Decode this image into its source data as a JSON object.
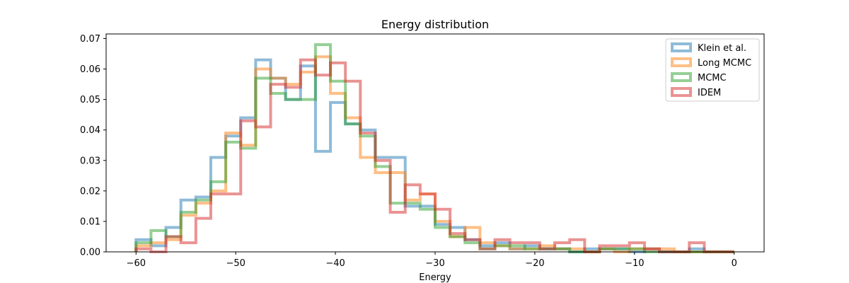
{
  "chart_data": {
    "type": "histogram",
    "title": "Energy distribution",
    "xlabel": "Energy",
    "ylabel": "",
    "xlim": [
      -63,
      3
    ],
    "ylim": [
      0,
      0.0715
    ],
    "grid": false,
    "legend_position": "top-right",
    "x_ticks": [
      -60,
      -50,
      -40,
      -30,
      -20,
      -10,
      0
    ],
    "x_tick_labels": [
      "−60",
      "−50",
      "−40",
      "−30",
      "−20",
      "−10",
      "0"
    ],
    "y_ticks": [
      0.0,
      0.01,
      0.02,
      0.03,
      0.04,
      0.05,
      0.06,
      0.07
    ],
    "y_tick_labels": [
      "0.00",
      "0.01",
      "0.02",
      "0.03",
      "0.04",
      "0.05",
      "0.06",
      "0.07"
    ],
    "bin_edges": [
      -60,
      -58.5,
      -57,
      -55.5,
      -54,
      -52.5,
      -51,
      -49.5,
      -48,
      -46.5,
      -45,
      -43.5,
      -42,
      -40.5,
      -39,
      -37.5,
      -36,
      -34.5,
      -33,
      -31.5,
      -30,
      -28.5,
      -27,
      -25.5,
      -24,
      -22.5,
      -21,
      -19.5,
      -18,
      -16.5,
      -15,
      -13.5,
      -12,
      -10.5,
      -9,
      -7.5,
      -6,
      -4.5,
      -3,
      -1.5,
      0
    ],
    "series": [
      {
        "name": "Klein et al.",
        "color": "#1f77b4",
        "values": [
          0.004,
          0.002,
          0.008,
          0.017,
          0.018,
          0.031,
          0.038,
          0.044,
          0.063,
          0.057,
          0.05,
          0.061,
          0.033,
          0.049,
          0.042,
          0.04,
          0.031,
          0.031,
          0.015,
          0.015,
          0.009,
          0.008,
          0.004,
          0.002,
          0.003,
          0.001,
          0.002,
          0.001,
          0.001,
          0.0,
          0.001,
          0.001,
          0.001,
          0.0,
          0.001,
          0.0,
          0.0,
          0.001,
          0.0,
          0.0
        ]
      },
      {
        "name": "Long MCMC",
        "color": "#ff7f0e",
        "values": [
          0.002,
          0.003,
          0.004,
          0.012,
          0.016,
          0.02,
          0.039,
          0.035,
          0.06,
          0.057,
          0.055,
          0.059,
          0.064,
          0.052,
          0.044,
          0.031,
          0.026,
          0.026,
          0.017,
          0.019,
          0.01,
          0.005,
          0.008,
          0.003,
          0.002,
          0.001,
          0.001,
          0.002,
          0.001,
          0.001,
          0.0,
          0.001,
          0.0,
          0.001,
          0.001,
          0.001,
          0.0,
          0.0,
          0.0,
          0.0
        ]
      },
      {
        "name": "MCMC",
        "color": "#2ca02c",
        "values": [
          0.003,
          0.007,
          0.005,
          0.013,
          0.017,
          0.023,
          0.036,
          0.034,
          0.057,
          0.052,
          0.05,
          0.05,
          0.068,
          0.056,
          0.042,
          0.038,
          0.028,
          0.016,
          0.016,
          0.014,
          0.008,
          0.005,
          0.003,
          0.001,
          0.002,
          0.002,
          0.001,
          0.001,
          0.001,
          0.0,
          0.0,
          0.001,
          0.001,
          0.001,
          0.0,
          0.0,
          0.0,
          0.0,
          0.0,
          0.0
        ]
      },
      {
        "name": "IDEM",
        "color": "#d62728",
        "values": [
          0.001,
          0.0,
          0.005,
          0.003,
          0.011,
          0.019,
          0.019,
          0.043,
          0.041,
          0.055,
          0.054,
          0.063,
          0.058,
          0.062,
          0.056,
          0.039,
          0.03,
          0.013,
          0.022,
          0.019,
          0.014,
          0.006,
          0.004,
          0.001,
          0.004,
          0.003,
          0.003,
          0.001,
          0.003,
          0.004,
          0.0,
          0.002,
          0.002,
          0.003,
          0.001,
          0.0,
          0.0,
          0.003,
          0.0,
          0.0
        ]
      }
    ]
  }
}
